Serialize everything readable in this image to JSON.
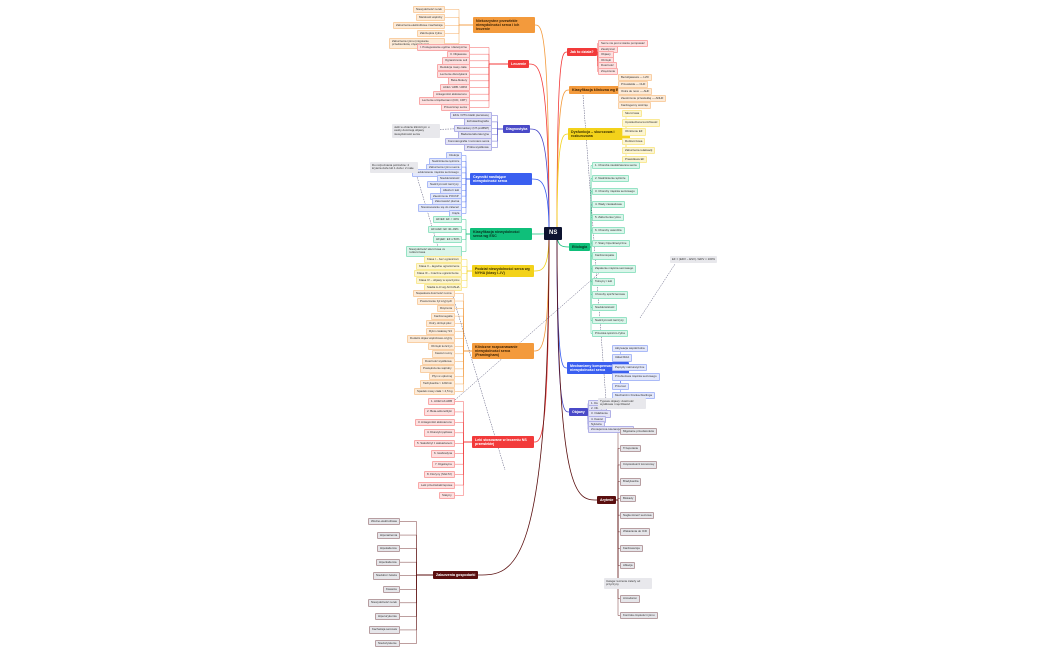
{
  "root": {
    "label": "NS"
  },
  "notes": [
    "Jeśli w obrazie klinicznym u osoby dominują objawy niewydolności serca",
    "Do rozpoznania potrzebne: 2 kryteria duże lub 1 duże i 2 małe",
    "EF = (EDV − ESV) / EDV × 100%",
    "Typowe objawy: duszność wysiłkowa i męczliwość",
    "Uwaga: leczenie zależy od przyczyny"
  ],
  "branches": [
    {
      "label": "Niekorzystne przewlekłe niewydolności serca i ich leczenie",
      "color": "#f39a3c",
      "text": "#3a2000",
      "childBg": "#fdebd8",
      "children": [
        "Niewydolność nerek",
        "Marskość wątroby",
        "Zaburzenia elektrolitowe i kacheksja",
        "Zakrzepica żylna",
        "Zaburzenia rytmu (migotanie przedsionków, częstoskurcz)"
      ]
    },
    {
      "label": "Leczenie",
      "color": "#f23a3a",
      "text": "#ffffff",
      "childBg": "#fde0e0",
      "children": [
        "I. Postępowanie ogólne i dietetyczne",
        "II. Objawowe",
        "Ograniczenie soli",
        "Redukcja masy ciała",
        "Leczenie diuretykami",
        "Beta-blokery",
        "ACEI / ARB / ARNI",
        "Antagoniści aldosteronu",
        "Leczenie urządzeniami (ICD, CRT)",
        "Przeszczep serca"
      ]
    },
    {
      "label": "Diagnostyka",
      "color": "#4a4ac8",
      "text": "#ffffff",
      "childBg": "#e4e4f6",
      "children": [
        "EKG / RTG klatki piersiowej",
        "Echokardiografia",
        "Biomarkery (NT-proBNP)",
        "Badania laboratoryjne",
        "Koronarografia / rezonans serca",
        "Próba wysiłkowa"
      ]
    },
    {
      "label": "Czynniki nasilające niewydolność serca",
      "color": "#3a5ff0",
      "text": "#ffffff",
      "childBg": "#e3e8fb",
      "children": [
        "Infekcja",
        "Nadciśnienie tętnicze",
        "Zaburzenia rytmu serca",
        "Niedokrwienie mięśnia sercowego",
        "Niedokrwistość",
        "Nadczynność tarczycy",
        "Alkohol i leki",
        "Zaostrzenie POChP",
        "Zatorowość płucna",
        "Niestosowanie się do zaleceń",
        "Ciąża"
      ]
    },
    {
      "label": "Klasyfikacja niewydolności serca wg ESC",
      "color": "#0fbf7a",
      "text": "#08301f",
      "childBg": "#daf5ea",
      "children": [
        "HFrEF: EF < 40%",
        "HFmrEF: EF 40–49%",
        "HFpEF: EF ≥ 50%",
        "Niewydolność skurczowa vs rozkurczowa"
      ]
    },
    {
      "label": "Podział niewydolności serca wg NYHA (klasy I–IV)",
      "color": "#f3d21a",
      "text": "#3a3000",
      "childBg": "#fcf5d2",
      "children": [
        "Klasa I – bez ograniczeń",
        "Klasa II – łagodne ograniczenie",
        "Klasa III – znaczne ograniczenie",
        "Klasa IV – objawy w spoczynku",
        "Stadia A–D wg ACC/AHA"
      ]
    },
    {
      "label": "Kliniczne rozpoznawanie niewydolności serca (Framingham)",
      "color": "#f39a3c",
      "text": "#3a2000",
      "childBg": "#fdebd8",
      "children": [
        "Napadowa duszność nocna",
        "Poszerzenie żył szyjnych",
        "Rzężenia",
        "Kardiomegalia",
        "Ostry obrzęk płuc",
        "Rytm cwałowy S3",
        "Dodatni objaw wątrobowo-szyjny",
        "Obrzęki kończyn",
        "Kaszel nocny",
        "Duszność wysiłkowa",
        "Powiększenie wątroby",
        "Płyn w opłucnej",
        "Tachykardia > 120/min",
        "Spadek masy ciała > 4,5 kg"
      ]
    },
    {
      "label": "Leki stosowane w leczeniu NS przewlekłej",
      "color": "#f23a3a",
      "text": "#ffffff",
      "childBg": "#fde0e0",
      "children": [
        "1. ACEI lub ARB",
        "2. Beta-adrenolityki",
        "3. Antagoniści aldosteronu",
        "4. Diuretyki pętlowe",
        "5. Sakubitryl z walsartanem",
        "6. Iwabradyna",
        "7. Digoksyna",
        "8. Flozyny (SGLT2)",
        "Leki przeciwzakrzepowe",
        "Statyny"
      ]
    },
    {
      "label": "Zaburzenia gospodarki",
      "color": "#5a0e0e",
      "text": "#ffffff",
      "childBg": "#e6e6ea",
      "children": [
        "Wodno-elektrolitowe",
        "Hiponatremia",
        "Hipokaliemia",
        "Hiperkaliemia",
        "Niedobór żelaza",
        "Kwasica",
        "Niewydolność nerek",
        "Hiperurykemia",
        "Kacheksja sercowa",
        "Niedożywienie"
      ]
    },
    {
      "label": "Jak to działa?",
      "color": "#f23a3a",
      "text": "#ffffff",
      "childBg": "#fde0e0",
      "children": [
        "Serce nie jest w stanie pompować",
        "Zastój krwi",
        "Objawy",
        "Obrzęki",
        "Duszność",
        "Zmęczenie"
      ]
    },
    {
      "label": "Klasyfikacja kliniczna wg ESC",
      "color": "#f39a3c",
      "text": "#3a2000",
      "childBg": "#fdebd8",
      "children": [
        "Bezobjawowa — LVD",
        "Przewlekła — CHF",
        "Ostra de novo — AHF",
        "Zaostrzenie przewlekłej — ADHF",
        "Kardiogenny wstrząs"
      ]
    },
    {
      "label": "Dysfunkcja – skurczowa i rozkurczowa",
      "color": "#f3d21a",
      "text": "#3a3000",
      "childBg": "#fcf5d2",
      "children": [
        "Skurczowa",
        "Upośledzona kurczliwość",
        "Obniżenie EF",
        "Rozkurczowa",
        "Zaburzenia relaksacji",
        "Prawidłowa EF"
      ]
    },
    {
      "label": "Etiologia",
      "color": "#0fbf7a",
      "text": "#08301f",
      "childBg": "#daf5ea",
      "children": [
        "1. Choroba niedokrwienna serca",
        "2. Nadciśnienie tętnicze",
        "3. Choroby mięśnia sercowego",
        "4. Wady zastawkowe",
        "5. Zaburzenia rytmu",
        "6. Choroby osierdzia",
        "7. Stany hiperkinetyczne",
        "Kardiomiopatie",
        "Zapalenie mięśnia sercowego",
        "Toksyny i leki",
        "Choroby spichrzeniowe",
        "Niedokrwistość",
        "Nadczynność tarczycy",
        "Przetoka tętniczo-żylna"
      ]
    },
    {
      "label": "Mechanizmy kompensacyjne niewydolności serca",
      "color": "#3a5ff0",
      "text": "#ffffff",
      "childBg": "#e3e8fb",
      "children": [
        "Aktywacja współczulna",
        "Układ RAA",
        "Peptydy natriuretyczne",
        "Przebudowa mięśnia sercowego",
        "Przerost",
        "Mechanizm Franka-Starlinga"
      ]
    },
    {
      "label": "Objawy",
      "color": "#4a4ac8",
      "text": "#ffffff",
      "childBg": "#e4e4f6",
      "children": [
        "1. Duszność",
        "2. Obrzęki",
        "3. Osłabienie",
        "4. Kaszel",
        "Nykturia",
        "Zmniejszona tolerancja wysiłku"
      ]
    },
    {
      "label": "Arytmie",
      "color": "#5a0e0e",
      "text": "#ffffff",
      "childBg": "#e6e6ea",
      "children": [
        "Migotanie przedsionków",
        "Trzepotanie",
        "Częstoskurcz komorowy",
        "Bradykardia",
        "Blokady",
        "Nagła śmierć sercowa",
        "Wskazania do ICD",
        "Kardiowersja",
        "Ablacja",
        "Leki antyarytmiczne",
        "Amiodaron",
        "Kontrola częstości rytmu"
      ]
    }
  ]
}
